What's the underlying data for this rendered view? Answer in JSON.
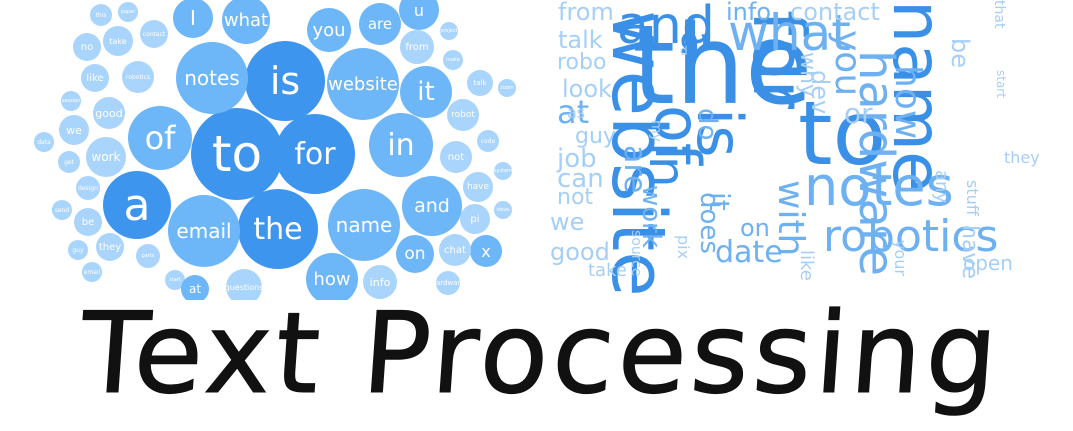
{
  "title": "Text Processing",
  "colors": {
    "bubble_light": "#a9d4fb",
    "bubble_mid": "#6db6f8",
    "bubble_dark": "#3d95ee",
    "cloud_dark": "#3a8fe6",
    "cloud_mid": "#6eb1f2",
    "cloud_light": "#a6cff7",
    "title_ink": "#111111"
  },
  "bubble_words": [
    {
      "text": "to",
      "tone": "dark"
    },
    {
      "text": "for",
      "tone": "dark"
    },
    {
      "text": "is",
      "tone": "dark"
    },
    {
      "text": "the",
      "tone": "dark"
    },
    {
      "text": "a",
      "tone": "dark"
    },
    {
      "text": "of",
      "tone": "mid"
    },
    {
      "text": "in",
      "tone": "mid"
    },
    {
      "text": "notes",
      "tone": "mid"
    },
    {
      "text": "email",
      "tone": "mid"
    },
    {
      "text": "name",
      "tone": "mid"
    },
    {
      "text": "website",
      "tone": "mid"
    },
    {
      "text": "and",
      "tone": "mid"
    },
    {
      "text": "it",
      "tone": "mid"
    },
    {
      "text": "how",
      "tone": "mid"
    },
    {
      "text": "what",
      "tone": "mid"
    },
    {
      "text": "you",
      "tone": "mid"
    },
    {
      "text": "are",
      "tone": "mid"
    },
    {
      "text": "I",
      "tone": "mid"
    },
    {
      "text": "u",
      "tone": "mid"
    },
    {
      "text": "on",
      "tone": "mid"
    },
    {
      "text": "x",
      "tone": "mid"
    },
    {
      "text": "work",
      "tone": "light"
    },
    {
      "text": "info",
      "tone": "light"
    },
    {
      "text": "from",
      "tone": "light"
    },
    {
      "text": "robot",
      "tone": "light"
    },
    {
      "text": "not",
      "tone": "light"
    },
    {
      "text": "have",
      "tone": "light"
    },
    {
      "text": "chat",
      "tone": "light"
    },
    {
      "text": "pi",
      "tone": "light"
    },
    {
      "text": "we",
      "tone": "light"
    },
    {
      "text": "good",
      "tone": "light"
    },
    {
      "text": "like",
      "tone": "light"
    },
    {
      "text": "be",
      "tone": "light"
    },
    {
      "text": "they",
      "tone": "light"
    },
    {
      "text": "no",
      "tone": "light"
    },
    {
      "text": "take",
      "tone": "light"
    },
    {
      "text": "robotics",
      "tone": "light"
    },
    {
      "text": "contact",
      "tone": "light"
    },
    {
      "text": "talk",
      "tone": "light"
    },
    {
      "text": "code",
      "tone": "light"
    },
    {
      "text": "get",
      "tone": "light"
    },
    {
      "text": "data",
      "tone": "light"
    },
    {
      "text": "design",
      "tone": "light"
    },
    {
      "text": "send",
      "tone": "light"
    },
    {
      "text": "guy",
      "tone": "light"
    },
    {
      "text": "email",
      "tone": "light"
    },
    {
      "text": "parts",
      "tone": "light"
    },
    {
      "text": "questions",
      "tone": "light"
    },
    {
      "text": "hardware",
      "tone": "light"
    },
    {
      "text": "this",
      "tone": "light"
    },
    {
      "text": "zoom",
      "tone": "light"
    },
    {
      "text": "make",
      "tone": "light"
    },
    {
      "text": "project",
      "tone": "light"
    },
    {
      "text": "session",
      "tone": "light"
    },
    {
      "text": "paper",
      "tone": "light"
    },
    {
      "text": "start",
      "tone": "light"
    },
    {
      "text": "system",
      "tone": "light"
    },
    {
      "text": "ideas",
      "tone": "light"
    },
    {
      "text": "at",
      "tone": "mid"
    }
  ],
  "cloud_words": [
    {
      "text": "the",
      "tone": "dark",
      "angle": 0
    },
    {
      "text": "website",
      "tone": "dark",
      "angle": 90
    },
    {
      "text": "to",
      "tone": "dark",
      "angle": 0
    },
    {
      "text": "name",
      "tone": "dark",
      "angle": 90
    },
    {
      "text": "for",
      "tone": "dark",
      "angle": 90
    },
    {
      "text": "is",
      "tone": "dark",
      "angle": 90
    },
    {
      "text": "notes",
      "tone": "mid",
      "angle": 0
    },
    {
      "text": "and",
      "tone": "dark",
      "angle": 0
    },
    {
      "text": "what",
      "tone": "mid",
      "angle": 0
    },
    {
      "text": "of",
      "tone": "dark",
      "angle": 90
    },
    {
      "text": "in",
      "tone": "dark",
      "angle": 90
    },
    {
      "text": "hardware",
      "tone": "mid",
      "angle": 90
    },
    {
      "text": "robotics",
      "tone": "mid",
      "angle": 0
    },
    {
      "text": "how",
      "tone": "mid",
      "angle": 90
    },
    {
      "text": "a",
      "tone": "dark",
      "angle": 90
    },
    {
      "text": "you",
      "tone": "mid",
      "angle": 90
    },
    {
      "text": "with",
      "tone": "mid",
      "angle": 90
    },
    {
      "text": "are",
      "tone": "mid",
      "angle": 90
    },
    {
      "text": "at",
      "tone": "mid",
      "angle": 0
    },
    {
      "text": "work",
      "tone": "mid",
      "angle": 90
    },
    {
      "text": "date",
      "tone": "mid",
      "angle": 0
    },
    {
      "text": "on",
      "tone": "mid",
      "angle": 0
    },
    {
      "text": "it",
      "tone": "mid",
      "angle": 90
    },
    {
      "text": "do",
      "tone": "mid",
      "angle": 90
    },
    {
      "text": "does",
      "tone": "mid",
      "angle": 90
    },
    {
      "text": "info",
      "tone": "mid",
      "angle": 0
    },
    {
      "text": "contact",
      "tone": "light",
      "angle": 0
    },
    {
      "text": "talk",
      "tone": "light",
      "angle": 0
    },
    {
      "text": "from",
      "tone": "light",
      "angle": 0
    },
    {
      "text": "robo",
      "tone": "light",
      "angle": 0
    },
    {
      "text": "look",
      "tone": "light",
      "angle": 0
    },
    {
      "text": "job",
      "tone": "light",
      "angle": 0
    },
    {
      "text": "can",
      "tone": "light",
      "angle": 0
    },
    {
      "text": "not",
      "tone": "light",
      "angle": 0
    },
    {
      "text": "we",
      "tone": "light",
      "angle": 0
    },
    {
      "text": "good",
      "tone": "light",
      "angle": 0
    },
    {
      "text": "take",
      "tone": "light",
      "angle": 0
    },
    {
      "text": "guy",
      "tone": "light",
      "angle": 0
    },
    {
      "text": "as",
      "tone": "light",
      "angle": 0
    },
    {
      "text": "source",
      "tone": "light",
      "angle": 90
    },
    {
      "text": "my",
      "tone": "light",
      "angle": 90
    },
    {
      "text": "pix",
      "tone": "light",
      "angle": 90
    },
    {
      "text": "like",
      "tone": "light",
      "angle": 90
    },
    {
      "text": "your",
      "tone": "light",
      "angle": 90
    },
    {
      "text": "open",
      "tone": "light",
      "angle": 0
    },
    {
      "text": "any",
      "tone": "light",
      "angle": 90
    },
    {
      "text": "be",
      "tone": "light",
      "angle": 90
    },
    {
      "text": "they",
      "tone": "light",
      "angle": 0
    },
    {
      "text": "have",
      "tone": "light",
      "angle": 90
    },
    {
      "text": "stuff",
      "tone": "light",
      "angle": 90
    },
    {
      "text": "that",
      "tone": "light",
      "angle": 90
    },
    {
      "text": "start",
      "tone": "light",
      "angle": 90
    },
    {
      "text": "why",
      "tone": "light",
      "angle": 90
    },
    {
      "text": "dev",
      "tone": "light",
      "angle": 90
    },
    {
      "text": "d",
      "tone": "light",
      "angle": 0
    },
    {
      "text": "or",
      "tone": "light",
      "angle": 0
    },
    {
      "text": "us",
      "tone": "light",
      "angle": 90
    },
    {
      "text": "i",
      "tone": "light",
      "angle": 0
    }
  ]
}
